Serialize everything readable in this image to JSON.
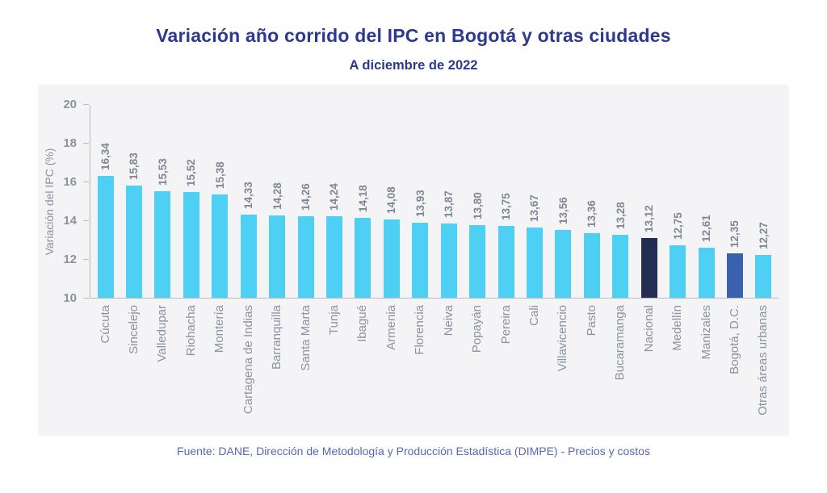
{
  "page": {
    "title": "Variación año corrido del IPC en Bogotá y otras ciudades",
    "subtitle": "A diciembre de 2022",
    "footer": "Fuente: DANE, Dirección de Metodología y Producción Estadística (DIMPE) - Precios y costos"
  },
  "colors": {
    "title_text": "#2B3990",
    "subtitle_text": "#2B3990",
    "footer_text": "#5A66B4",
    "panel_bg": "#F4F4F6",
    "axis_line": "#B7BCC4",
    "ytick_text": "#8A93A0",
    "ylabel_text": "#8A93A0",
    "value_label_text": "#7E8894",
    "category_text": "#8A93A0"
  },
  "chart_data": {
    "type": "bar",
    "title": "Variación año corrido del IPC en Bogotá y otras ciudades",
    "subtitle": "A diciembre de 2022",
    "source": "Fuente: DANE, Dirección de Metodología y Producción Estadística (DIMPE) - Precios y costos",
    "xlabel": "",
    "ylabel": "Variación del IPC (%)",
    "ylim": [
      10,
      20
    ],
    "yticks": [
      10,
      12,
      14,
      16,
      18,
      20
    ],
    "grid": false,
    "legend_position": "none",
    "categories": [
      "Cúcuta",
      "Sincelejo",
      "Valledupar",
      "Riohacha",
      "Montería",
      "Cartagena de Indias",
      "Barranquilla",
      "Santa Marta",
      "Tunja",
      "Ibagué",
      "Armenia",
      "Florencia",
      "Neiva",
      "Popayán",
      "Pereira",
      "Cali",
      "Villavicencio",
      "Pasto",
      "Bucaramanga",
      "Nacional",
      "Medellín",
      "Manizales",
      "Bogotá, D.C.",
      "Otras áreas urbanas"
    ],
    "values": [
      16.34,
      15.83,
      15.53,
      15.52,
      15.38,
      14.33,
      14.28,
      14.26,
      14.24,
      14.18,
      14.08,
      13.93,
      13.87,
      13.8,
      13.75,
      13.67,
      13.56,
      13.36,
      13.28,
      13.12,
      12.75,
      12.61,
      12.35,
      12.27
    ],
    "value_labels": [
      "16,34",
      "15,83",
      "15,53",
      "15,52",
      "15,38",
      "14,33",
      "14,28",
      "14,26",
      "14,24",
      "14,18",
      "14,08",
      "13,93",
      "13,87",
      "13,80",
      "13,75",
      "13,67",
      "13,56",
      "13,36",
      "13,28",
      "13,12",
      "12,75",
      "12,61",
      "12,35",
      "12,27"
    ],
    "default_bar_color": "#4ED0F5",
    "highlighted_bars": [
      {
        "category": "Nacional",
        "color": "#232C51"
      },
      {
        "category": "Bogotá, D.C.",
        "color": "#3A61AC"
      }
    ]
  }
}
